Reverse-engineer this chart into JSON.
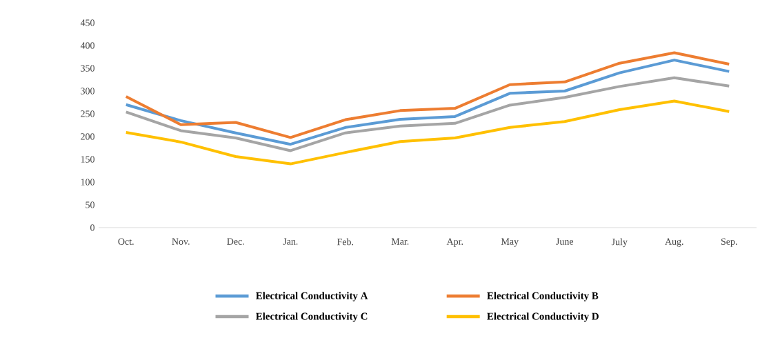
{
  "chart_data": {
    "type": "line",
    "categories": [
      "Oct.",
      "Nov.",
      "Dec.",
      "Jan.",
      "Feb.",
      "Mar.",
      "Apr.",
      "May",
      "June",
      "July",
      "Aug.",
      "Sep."
    ],
    "series": [
      {
        "name": "Electrical  Conductivity A",
        "color": "#5b9bd5",
        "values": [
          270,
          235,
          208,
          183,
          220,
          238,
          244,
          295,
          300,
          340,
          368,
          343
        ]
      },
      {
        "name": "Electrical  Conductivity B",
        "color": "#ed7d31",
        "values": [
          288,
          226,
          231,
          198,
          237,
          257,
          262,
          314,
          320,
          361,
          384,
          359
        ]
      },
      {
        "name": "Electrical  Conductivity C",
        "color": "#a5a5a5",
        "values": [
          254,
          213,
          197,
          169,
          208,
          223,
          229,
          269,
          286,
          310,
          329,
          311
        ]
      },
      {
        "name": "Electrical  Conductivity D",
        "color": "#ffc000",
        "values": [
          209,
          188,
          156,
          140,
          165,
          189,
          197,
          220,
          233,
          259,
          278,
          255
        ]
      }
    ],
    "ylim": [
      0,
      450
    ],
    "yticks": [
      0,
      50,
      100,
      150,
      200,
      250,
      300,
      350,
      400,
      450
    ],
    "legend": "bottom",
    "marker": "none"
  }
}
